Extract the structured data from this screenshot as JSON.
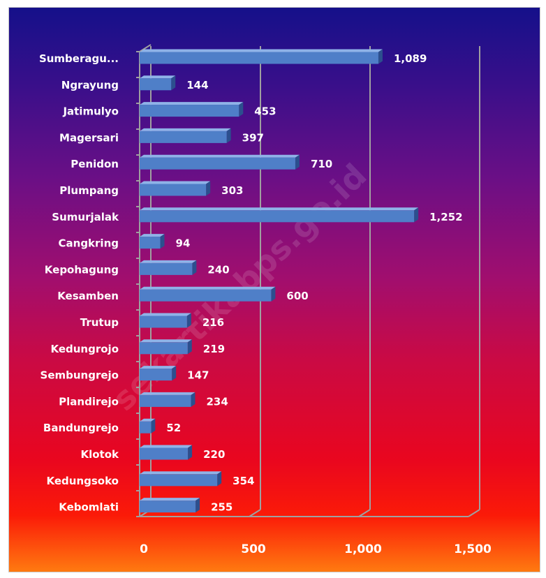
{
  "watermark": "sekartikabps.go.id",
  "colors": {
    "bar_front": "#4f7fc8",
    "bar_top": "#8fb3e8",
    "bar_side": "#2c4f8e",
    "grid": "#a0a0a0"
  },
  "chart_data": {
    "type": "bar",
    "orientation": "horizontal",
    "style": "3d",
    "title": "",
    "xlabel": "",
    "ylabel": "",
    "categories": [
      "Sumberagu...",
      "Ngrayung",
      "Jatimulyo",
      "Magersari",
      "Penidon",
      "Plumpang",
      "Sumurjalak",
      "Cangkring",
      "Kepohagung",
      "Kesamben",
      "Trutup",
      "Kedungrojo",
      "Sembungrejo",
      "Plandirejo",
      "Bandungrejo",
      "Klotok",
      "Kedungsoko",
      "Kebomlati"
    ],
    "values": [
      1089,
      144,
      453,
      397,
      710,
      303,
      1252,
      94,
      240,
      600,
      216,
      219,
      147,
      234,
      52,
      220,
      354,
      255
    ],
    "value_labels": [
      "1,089",
      "144",
      "453",
      "397",
      "710",
      "303",
      "1,252",
      "94",
      "240",
      "600",
      "216",
      "219",
      "147",
      "234",
      "52",
      "220",
      "354",
      "255"
    ],
    "xlim": [
      0,
      1500
    ],
    "xticks": [
      0,
      500,
      1000,
      1500
    ],
    "xtick_labels": [
      "0",
      "500",
      "1,000",
      "1,500"
    ],
    "grid": true,
    "legend": "none"
  }
}
